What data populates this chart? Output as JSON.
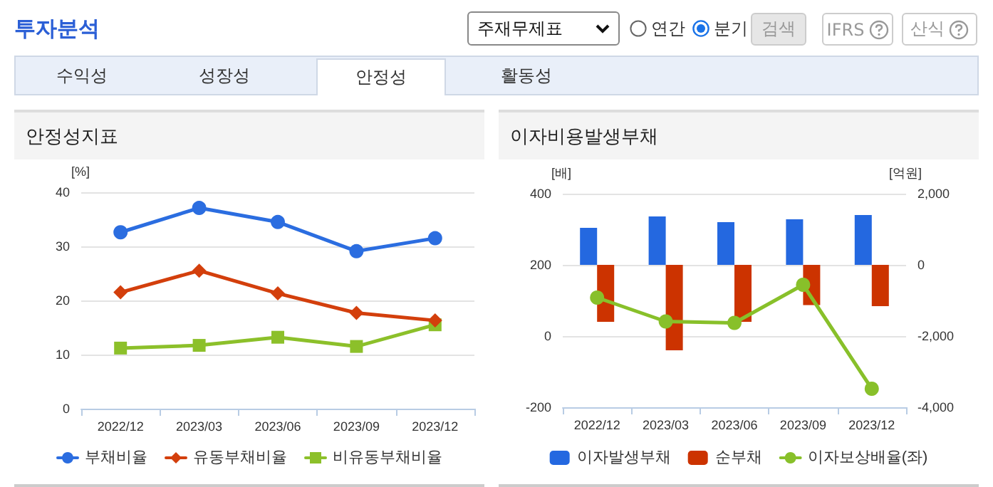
{
  "chart_data": [
    {
      "type": "other",
      "title": "투자분석",
      "annotations": [
        "주재무제표",
        "연간",
        "분기",
        "검색",
        "IFRS",
        "산식",
        "수익성",
        "성장성",
        "안정성",
        "활동성"
      ]
    },
    {
      "type": "line",
      "title": "안정성지표",
      "ylabel": "[%]",
      "categories": [
        "2022/12",
        "2023/03",
        "2023/06",
        "2023/09",
        "2023/12"
      ],
      "series": [
        {
          "name": "부채비율",
          "color": "#2b6de0",
          "marker": "circle",
          "values": [
            32.6,
            37.1,
            34.5,
            29.1,
            31.5
          ]
        },
        {
          "name": "유동부채비율",
          "color": "#d33f0c",
          "marker": "diamond",
          "values": [
            21.5,
            25.5,
            21.3,
            17.7,
            16.3
          ]
        },
        {
          "name": "비유동부채비율",
          "color": "#8cc02a",
          "marker": "square",
          "values": [
            11.2,
            11.7,
            13.2,
            11.5,
            15.5
          ]
        }
      ],
      "ylim": [
        0,
        40
      ],
      "yticks": [
        0,
        10,
        20,
        30,
        40
      ],
      "grid": "y",
      "legend": "bottom"
    },
    {
      "type": "bar",
      "title": "이자비용발생부채",
      "ylabel": "[배]",
      "y2label": "[억원]",
      "categories": [
        "2022/12",
        "2023/03",
        "2023/06",
        "2023/09",
        "2023/12"
      ],
      "series": [
        {
          "name": "이자발생부채",
          "color": "#2468e0",
          "axis": "y2",
          "values": [
            1040,
            1360,
            1200,
            1280,
            1400
          ]
        },
        {
          "name": "순부채",
          "color": "#cc3300",
          "axis": "y2",
          "values": [
            -1600,
            -2400,
            -1600,
            -1130,
            -1160
          ]
        },
        {
          "name": "이자보상배율(좌)",
          "type": "line",
          "color": "#88c02a",
          "marker": "circle",
          "axis": "y",
          "values": [
            108,
            41,
            37,
            144,
            -148
          ]
        }
      ],
      "ylim": [
        -200,
        400
      ],
      "yticks": [
        -200,
        0,
        200,
        400
      ],
      "y2lim": [
        -4000,
        2000
      ],
      "y2ticks": [
        {
          "value": -4000,
          "label": "-4,000"
        },
        {
          "value": -2000,
          "label": "-2,000"
        },
        {
          "value": 0,
          "label": "0"
        },
        {
          "value": 2000,
          "label": "2,000"
        }
      ],
      "grid": "y",
      "legend": "bottom"
    }
  ]
}
